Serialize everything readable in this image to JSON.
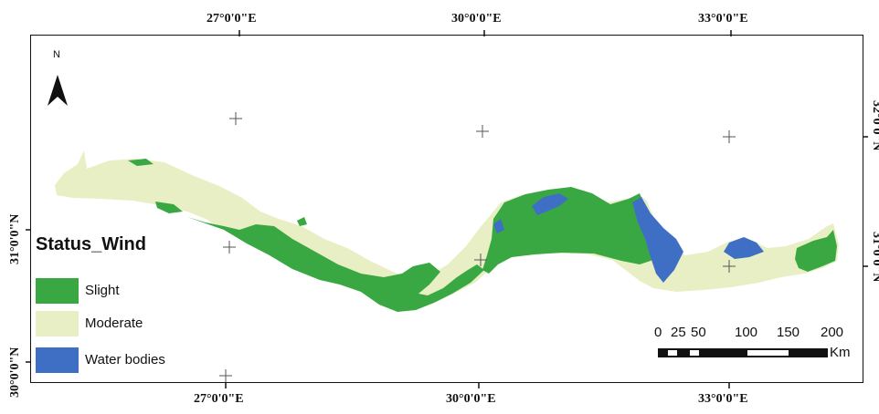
{
  "map": {
    "top_lon_labels": [
      "27°0'0\"E",
      "30°0'0\"E",
      "33°0'0\"E"
    ],
    "bottom_lon_labels": [
      "27°0'0\"E",
      "30°0'0\"E",
      "33°0'0\"E"
    ],
    "left_lat_labels": [
      "31°0'0\"N",
      "30°0'0\"N"
    ],
    "right_lat_labels": [
      "32°0'0\"N",
      "31°0'0\"N"
    ],
    "north_arrow_label": "N"
  },
  "legend": {
    "title": "Status_Wind",
    "items": [
      {
        "label": "Slight",
        "color": "#3aa842"
      },
      {
        "label": "Moderate",
        "color": "#e9efc4"
      },
      {
        "label": "Water bodies",
        "color": "#3e6fc4"
      }
    ]
  },
  "scale_bar": {
    "ticks": [
      "0",
      "25",
      "50",
      "100",
      "150",
      "200"
    ],
    "unit": "Km"
  },
  "colors": {
    "slight": "#3aa842",
    "moderate": "#e9efc4",
    "water": "#3e6fc4",
    "frame": "#111111"
  }
}
